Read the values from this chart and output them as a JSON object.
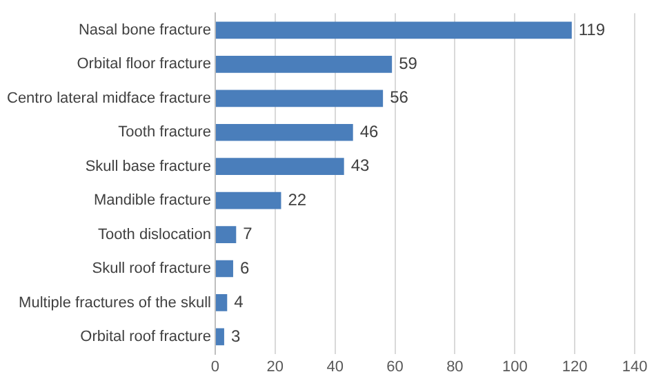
{
  "chart_data": {
    "type": "bar",
    "orientation": "horizontal",
    "categories": [
      "Nasal bone fracture",
      "Orbital floor fracture",
      "Centro lateral midface fracture",
      "Tooth fracture",
      "Skull base fracture",
      "Mandible fracture",
      "Tooth dislocation",
      "Skull roof fracture",
      "Multiple fractures of the skull",
      "Orbital roof fracture"
    ],
    "values": [
      119,
      59,
      56,
      46,
      43,
      22,
      7,
      6,
      4,
      3
    ],
    "color": "#4a7ebb",
    "xlim": [
      0,
      140
    ],
    "xticks": [
      0,
      20,
      40,
      60,
      80,
      100,
      120,
      140
    ],
    "grid": "x",
    "data_labels": true,
    "legend": false
  }
}
